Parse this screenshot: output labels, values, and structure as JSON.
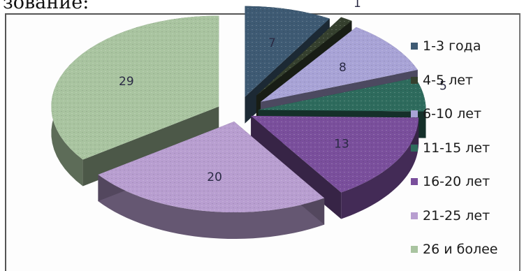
{
  "header_fragment": "зование:",
  "chart_data": {
    "type": "pie",
    "title": "",
    "categories": [
      "1-3 года",
      "4-5 лет",
      "6-10 лет",
      "11-15 лет",
      "16-20 лет",
      "21-25 лет",
      "26 и более"
    ],
    "values": [
      7,
      1,
      8,
      5,
      13,
      20,
      29
    ],
    "data_labels": [
      "7",
      "1",
      "8",
      "5",
      "13",
      "20",
      "29"
    ],
    "colors": [
      "#3e5a73",
      "#35402e",
      "#a8a3d6",
      "#2e6b5d",
      "#7a4f9c",
      "#b89ed0",
      "#a9c4a0"
    ],
    "style": "3d-exploded",
    "legend_position": "right"
  }
}
